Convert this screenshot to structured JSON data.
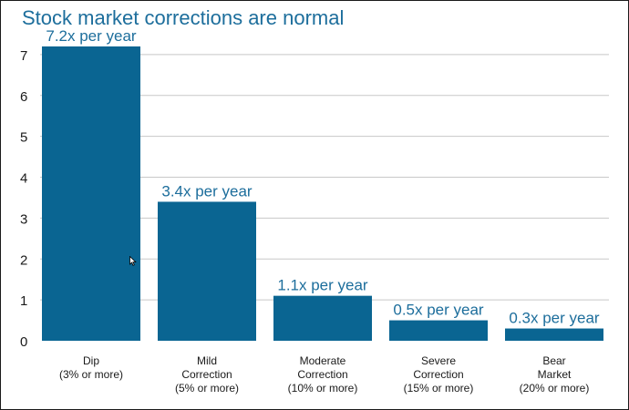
{
  "chart_data": {
    "type": "bar",
    "title": "Stock market corrections are normal",
    "categories": [
      [
        "Dip",
        "(3% or more)"
      ],
      [
        "Mild",
        "Correction",
        "(5% or more)"
      ],
      [
        "Moderate",
        "Correction",
        "(10% or more)"
      ],
      [
        "Severe",
        "Correction",
        "(15% or more)"
      ],
      [
        "Bear",
        "Market",
        "(20% or more)"
      ]
    ],
    "values": [
      7.2,
      3.4,
      1.1,
      0.5,
      0.3
    ],
    "data_labels": [
      "7.2x per year",
      "3.4x per year",
      "1.1x per year",
      "0.5x per year",
      "0.3x per year"
    ],
    "y_ticks": [
      "0",
      "1",
      "2",
      "3",
      "4",
      "5",
      "6",
      "7"
    ],
    "ylim": [
      0,
      7.5
    ],
    "grid": true,
    "xlabel": "",
    "ylabel": "",
    "colors": {
      "bar": "#0a6592",
      "title": "#1d6e9c",
      "data_label": "#1d6e9c",
      "grid": "#c8c8c8",
      "axis_text": "#1a1a1a"
    }
  }
}
